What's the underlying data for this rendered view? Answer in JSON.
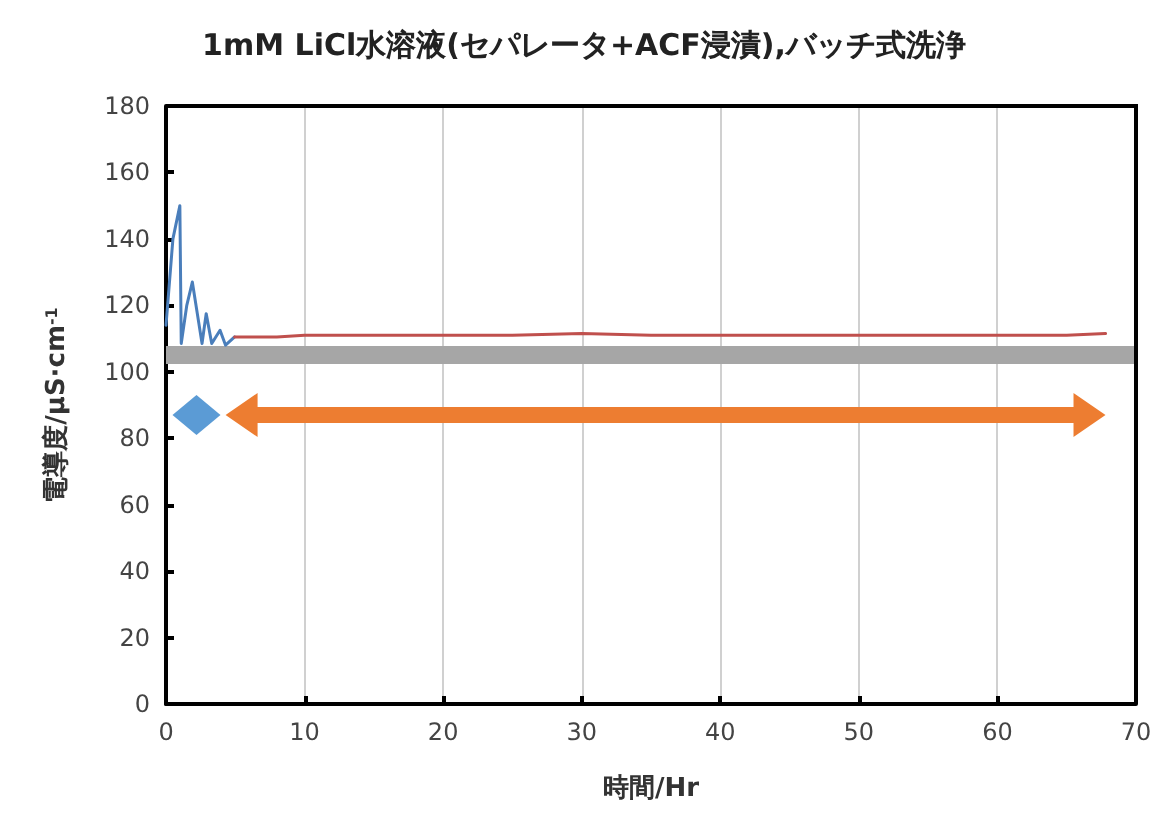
{
  "chart_data": {
    "type": "line",
    "title": "1mM LiCl水溶液(セパレータ+ACF浸漬),バッチ式洗浄",
    "xlabel": "時間/Hr",
    "ylabel": "電導度/μS·cm$^{-1}$",
    "series": [
      {
        "color": "#4a7ebb",
        "x": [
          0,
          0.5,
          1.0,
          1.1,
          1.5,
          1.9,
          2.6,
          2.9,
          3.3,
          3.9,
          4.3,
          4.95
        ],
        "values": [
          114,
          140,
          150,
          108.5,
          120,
          127,
          108.5,
          117.5,
          108.5,
          112.5,
          108,
          110.5
        ]
      },
      {
        "color": "#c0504d",
        "x": [
          4.95,
          6,
          8,
          10,
          15,
          20,
          25,
          30,
          35,
          40,
          45,
          50,
          55,
          60,
          65,
          67.8
        ],
        "values": [
          110.5,
          110.5,
          110.5,
          111,
          111,
          111,
          111,
          111.5,
          111,
          111,
          111,
          111,
          111,
          111,
          111,
          111.5
        ]
      }
    ],
    "ref_lines": [
      {
        "axis": "y",
        "value": 105,
        "color": "#a6a6a6"
      }
    ],
    "xlim": [
      0,
      70
    ],
    "xticks": [
      0,
      10,
      20,
      30,
      40,
      50,
      60,
      70
    ],
    "ylim": [
      0,
      180
    ],
    "yticks": [
      0,
      20,
      40,
      60,
      80,
      100,
      120,
      140,
      160,
      180
    ],
    "grid": "x",
    "marker": "none",
    "line_style": "solid"
  }
}
